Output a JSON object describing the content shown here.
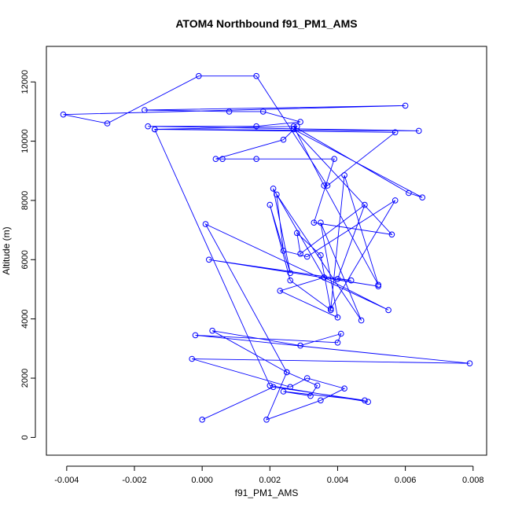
{
  "chart_data": {
    "type": "line",
    "title": "ATOM4 Northbound f91_PM1_AMS",
    "xlabel": "f91_PM1_AMS",
    "ylabel": "Altitude (m)",
    "xlim": [
      -0.0046,
      0.0084
    ],
    "ylim": [
      -600,
      13200
    ],
    "x_ticks": [
      -0.004,
      -0.002,
      0.0,
      0.002,
      0.004,
      0.006,
      0.008
    ],
    "x_tick_labels": [
      "-0.004",
      "-0.002",
      "0.000",
      "0.002",
      "0.004",
      "0.006",
      "0.008"
    ],
    "y_ticks": [
      0,
      2000,
      4000,
      6000,
      8000,
      10000,
      12000
    ],
    "y_tick_labels": [
      "0",
      "2000",
      "4000",
      "6000",
      "8000",
      "10000",
      "12000"
    ],
    "grid": false,
    "series": [
      {
        "color": "#0000ff",
        "marker": "open-circle",
        "points": [
          [
            0.0,
            600
          ],
          [
            0.0021,
            1700
          ],
          [
            0.0048,
            1250
          ],
          [
            0.0024,
            1550
          ],
          [
            0.0032,
            1400
          ],
          [
            0.0034,
            1750
          ],
          [
            0.0025,
            2200
          ],
          [
            0.0019,
            600
          ],
          [
            0.0035,
            1250
          ],
          [
            0.0042,
            1650
          ],
          [
            0.0031,
            2000
          ],
          [
            0.0026,
            1700
          ],
          [
            -0.0003,
            2650
          ],
          [
            0.0079,
            2500
          ],
          [
            -0.0002,
            3450
          ],
          [
            0.004,
            3200
          ],
          [
            0.0041,
            3500
          ],
          [
            0.0029,
            3100
          ],
          [
            0.0003,
            3600
          ],
          [
            0.0025,
            2200
          ],
          [
            0.0001,
            7200
          ],
          [
            0.0055,
            4300
          ],
          [
            0.0036,
            5400
          ],
          [
            0.0052,
            5100
          ],
          [
            0.0002,
            6000
          ],
          [
            0.0044,
            5300
          ],
          [
            0.004,
            5350
          ],
          [
            0.0048,
            7850
          ],
          [
            0.0029,
            6200
          ],
          [
            0.0028,
            6900
          ],
          [
            0.0035,
            6150
          ],
          [
            0.0038,
            4300
          ],
          [
            0.0026,
            5300
          ],
          [
            0.002,
            7850
          ],
          [
            0.0026,
            5550
          ],
          [
            0.0021,
            8400
          ],
          [
            0.0036,
            5400
          ],
          [
            0.0023,
            4950
          ],
          [
            0.004,
            4050
          ],
          [
            0.0035,
            7250
          ],
          [
            0.0047,
            3950
          ],
          [
            0.0022,
            8200
          ],
          [
            0.0024,
            6300
          ],
          [
            0.0031,
            6100
          ],
          [
            0.0057,
            8000
          ],
          [
            0.0038,
            4350
          ],
          [
            0.0042,
            8850
          ],
          [
            0.0052,
            5150
          ],
          [
            0.0036,
            8500
          ],
          [
            0.0027,
            10500
          ],
          [
            0.0061,
            8250
          ],
          [
            0.0065,
            8100
          ],
          [
            0.0027,
            10400
          ],
          [
            0.0056,
            6850
          ],
          [
            0.0033,
            7250
          ],
          [
            0.0039,
            9400
          ],
          [
            0.0006,
            9400
          ],
          [
            0.0016,
            9400
          ],
          [
            0.0004,
            9400
          ],
          [
            0.0024,
            10050
          ],
          [
            0.0028,
            10500
          ],
          [
            -0.0014,
            10400
          ],
          [
            0.0064,
            10350
          ],
          [
            -0.0016,
            10500
          ],
          [
            0.0016,
            10500
          ],
          [
            0.0029,
            10650
          ],
          [
            0.0018,
            11000
          ],
          [
            0.0008,
            11000
          ],
          [
            -0.0017,
            11050
          ],
          [
            0.006,
            11200
          ],
          [
            -0.0041,
            10900
          ],
          [
            -0.0028,
            10600
          ],
          [
            -0.0001,
            12200
          ],
          [
            0.0016,
            12200
          ],
          [
            0.0037,
            8500
          ],
          [
            0.0057,
            10300
          ],
          [
            -0.0014,
            10400
          ],
          [
            0.002,
            1750
          ],
          [
            0.0049,
            1200
          ]
        ]
      }
    ]
  }
}
